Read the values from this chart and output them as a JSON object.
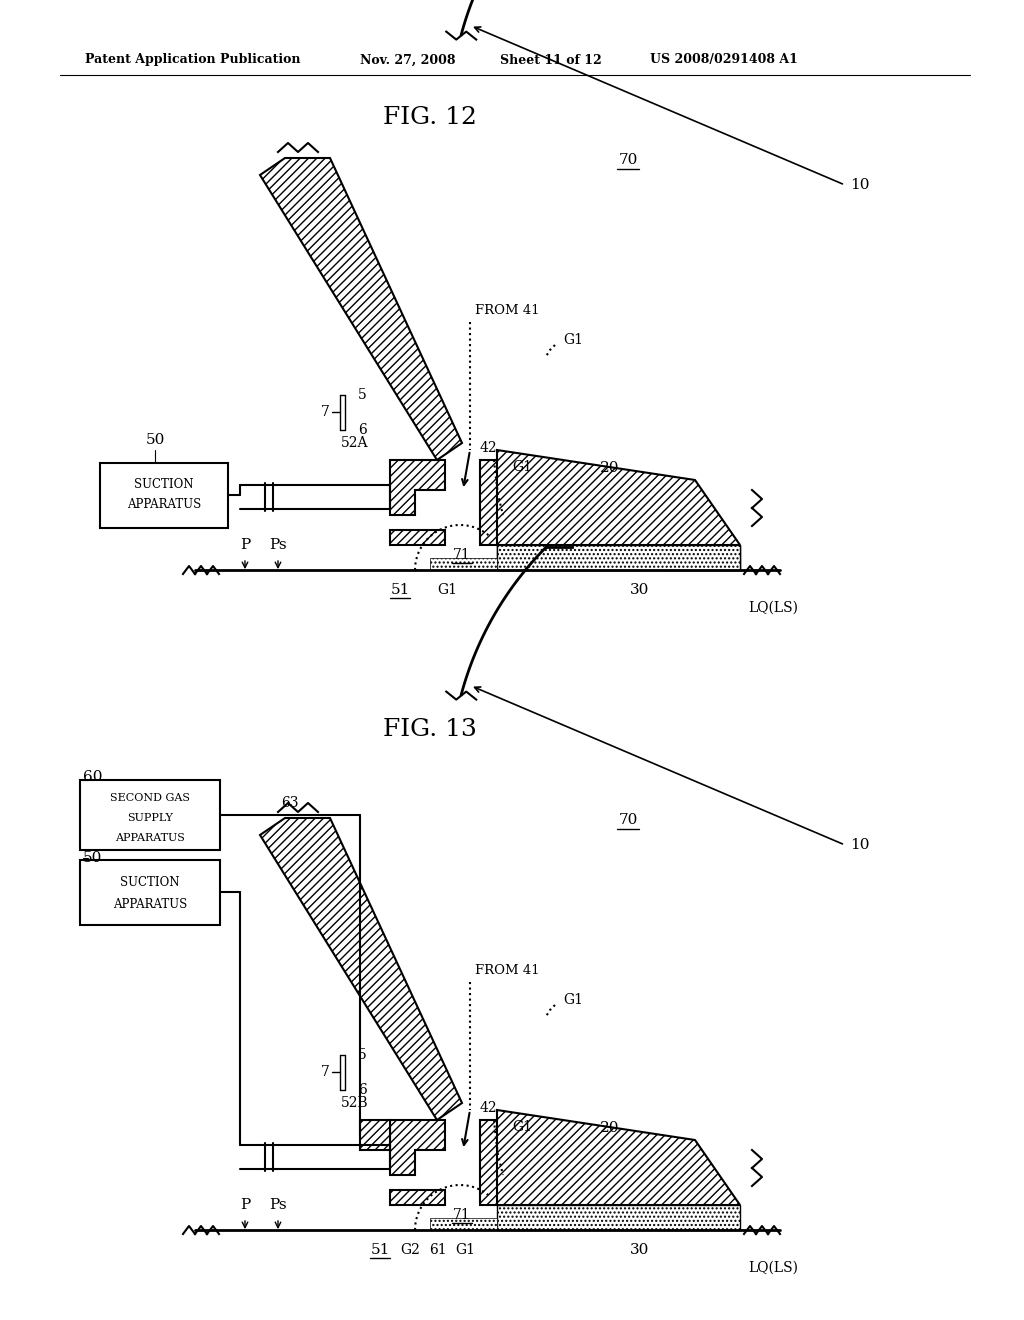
{
  "bg_color": "#ffffff",
  "header_text": "Patent Application Publication",
  "header_date": "Nov. 27, 2008",
  "header_sheet": "Sheet 11 of 12",
  "header_patent": "US 2008/0291408 A1",
  "fig12_title": "FIG. 12",
  "fig13_title": "FIG. 13",
  "lw_thick": 2.0,
  "lw_med": 1.5,
  "lw_thin": 1.0
}
